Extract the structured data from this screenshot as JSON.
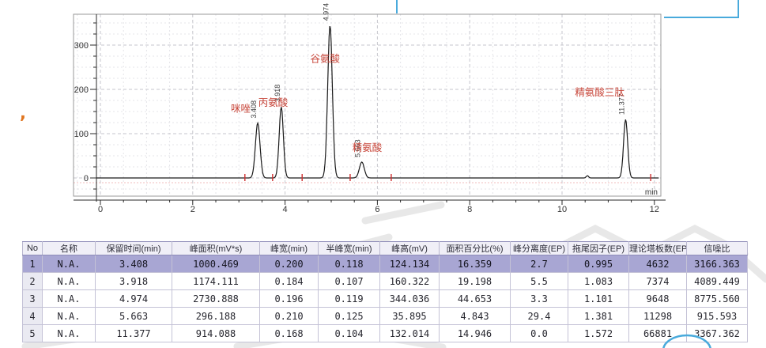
{
  "annotation": {
    "comma": ",",
    "blue_color": "#49aadc",
    "comma_color": "#e0751f"
  },
  "chart_data": {
    "type": "line",
    "title": "",
    "xlabel": "min",
    "ylabel": "",
    "x_ticks": [
      0,
      2,
      4,
      6,
      8,
      10,
      12
    ],
    "y_ticks": [
      0,
      100,
      200,
      300
    ],
    "x_minor_step": 0.5,
    "y_minor_step": 25,
    "xlim": [
      -0.58,
      12.15
    ],
    "ylim": [
      -41,
      369
    ],
    "grid": true,
    "legend": false,
    "curve_color": "#1a1a1a",
    "peak_label_color": "#c8473b",
    "integration_tick_color": "#d03030",
    "peaks": [
      {
        "name": "咪唑",
        "rt": 3.408,
        "height": 124.134,
        "fwhm": 0.118
      },
      {
        "name": "丙氨酸",
        "rt": 3.918,
        "height": 160.322,
        "fwhm": 0.107
      },
      {
        "name": "谷氨酸",
        "rt": 4.974,
        "height": 344.036,
        "fwhm": 0.119
      },
      {
        "name": "精氨酸",
        "rt": 5.663,
        "height": 35.895,
        "fwhm": 0.125
      },
      {
        "name": "精氨酸三肽",
        "rt": 11.377,
        "height": 132.014,
        "fwhm": 0.104
      }
    ],
    "minor_peak": {
      "rt": 10.55,
      "height": 5,
      "fwhm": 0.06
    },
    "integration_tick_times": [
      3.13,
      3.73,
      4.37,
      5.41,
      6.3,
      11.92
    ]
  },
  "table": {
    "headers": [
      "No",
      "名称",
      "保留时间(min)",
      "峰面积(mV*s)",
      "峰宽(min)",
      "半峰宽(min)",
      "峰高(mV)",
      "面积百分比(%)",
      "峰分离度(EP)",
      "拖尾因子(EP)",
      "理论塔板数(EP)",
      "信噪比"
    ],
    "rows": [
      [
        "1",
        "N.A.",
        "3.408",
        "1000.469",
        "0.200",
        "0.118",
        "124.134",
        "16.359",
        "2.7",
        "0.995",
        "4632",
        "3166.363"
      ],
      [
        "2",
        "N.A.",
        "3.918",
        "1174.111",
        "0.184",
        "0.107",
        "160.322",
        "19.198",
        "5.5",
        "1.083",
        "7374",
        "4089.449"
      ],
      [
        "3",
        "N.A.",
        "4.974",
        "2730.888",
        "0.196",
        "0.119",
        "344.036",
        "44.653",
        "3.3",
        "1.101",
        "9648",
        "8775.560"
      ],
      [
        "4",
        "N.A.",
        "5.663",
        "296.188",
        "0.210",
        "0.125",
        "35.895",
        "4.843",
        "29.4",
        "1.381",
        "11298",
        "915.593"
      ],
      [
        "5",
        "N.A.",
        "11.377",
        "914.088",
        "0.168",
        "0.104",
        "132.014",
        "14.946",
        "0.0",
        "1.572",
        "66881",
        "3367.362"
      ]
    ],
    "selected_row": 0,
    "colors": {
      "selected_bg": "#a8a6d3",
      "header_bg": "#f0eff7",
      "index_col_bg": "#eaeaf2",
      "border": "#c4c2d6"
    }
  }
}
